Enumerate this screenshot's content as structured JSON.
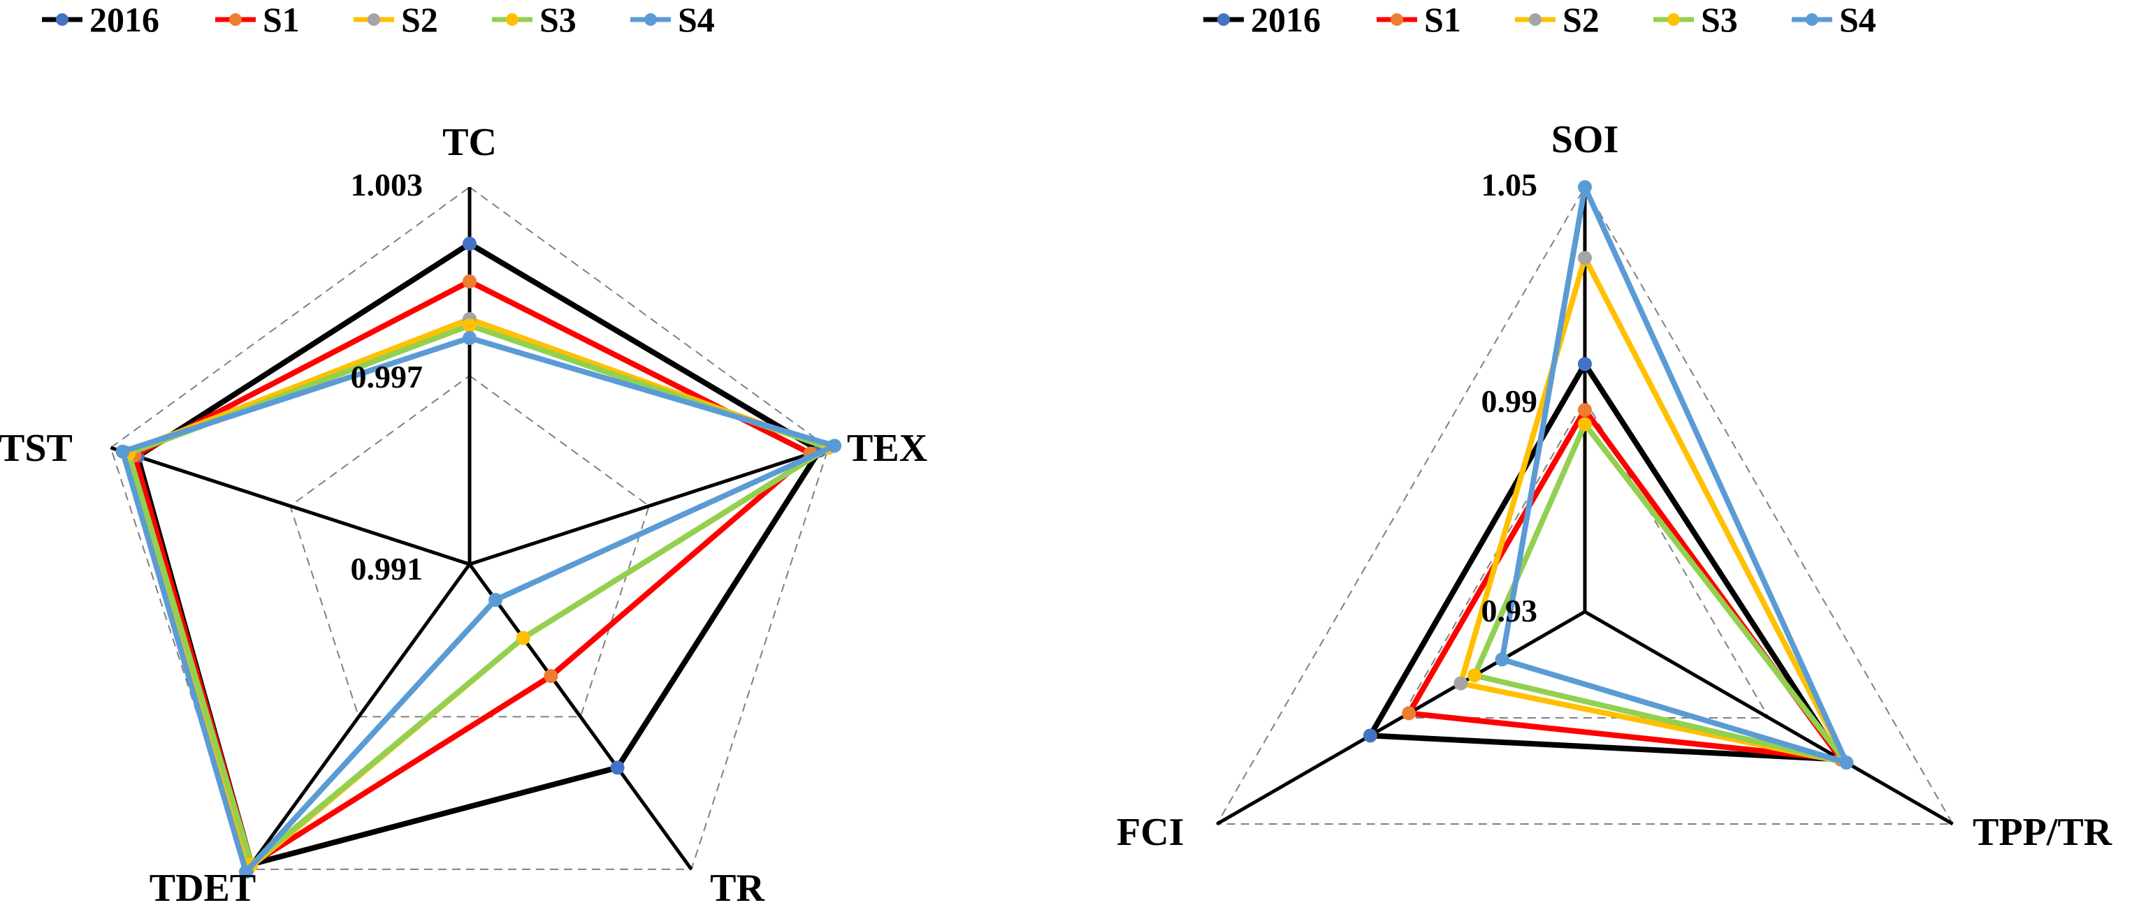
{
  "colors": {
    "axis": "#000000",
    "grid": "#808080",
    "series": {
      "2016": {
        "line": "#000000",
        "marker": "#4472C4"
      },
      "S1": {
        "line": "#FF0000",
        "marker": "#ED7D31"
      },
      "S2": {
        "line": "#FFC000",
        "marker": "#A5A5A5"
      },
      "S3": {
        "line": "#92D050",
        "marker": "#FFC000"
      },
      "S4": {
        "line": "#5B9BD5",
        "marker": "#5B9BD5"
      }
    }
  },
  "chart_data": [
    {
      "type": "radar",
      "axes": [
        "TC",
        "TEX",
        "TR",
        "TDET",
        "TST"
      ],
      "tick_labels": [
        "1.003",
        "0.997",
        "0.991"
      ],
      "range": [
        0.991,
        1.003
      ],
      "grid": true,
      "legend_position": "top",
      "series": [
        {
          "name": "2016",
          "values": [
            1.0012,
            1.0027,
            0.999,
            1.0028,
            1.0021
          ]
        },
        {
          "name": "S1",
          "values": [
            1.0,
            1.0024,
            0.9954,
            1.0028,
            1.0022
          ]
        },
        {
          "name": "S2",
          "values": [
            0.9988,
            1.003,
            0.9939,
            1.003,
            1.0025
          ]
        },
        {
          "name": "S3",
          "values": [
            0.9986,
            1.003,
            0.9939,
            1.0028,
            1.0024
          ]
        },
        {
          "name": "S4",
          "values": [
            0.9982,
            1.0032,
            0.9924,
            1.0031,
            1.0026
          ]
        }
      ]
    },
    {
      "type": "radar",
      "axes": [
        "SOI",
        "TPP/TR",
        "FCI"
      ],
      "tick_labels": [
        "1.05",
        "0.99",
        "0.93"
      ],
      "range": [
        0.93,
        1.05
      ],
      "grid": true,
      "legend_position": "top",
      "series": [
        {
          "name": "2016",
          "values": [
            1.0,
            1.0135,
            1.0
          ]
        },
        {
          "name": "S1",
          "values": [
            0.987,
            1.0135,
            0.9874
          ]
        },
        {
          "name": "S2",
          "values": [
            1.03,
            1.0153,
            0.9705
          ]
        },
        {
          "name": "S3",
          "values": [
            0.983,
            1.0153,
            0.966
          ]
        },
        {
          "name": "S4",
          "values": [
            1.05,
            1.0153,
            0.957
          ]
        }
      ]
    }
  ]
}
